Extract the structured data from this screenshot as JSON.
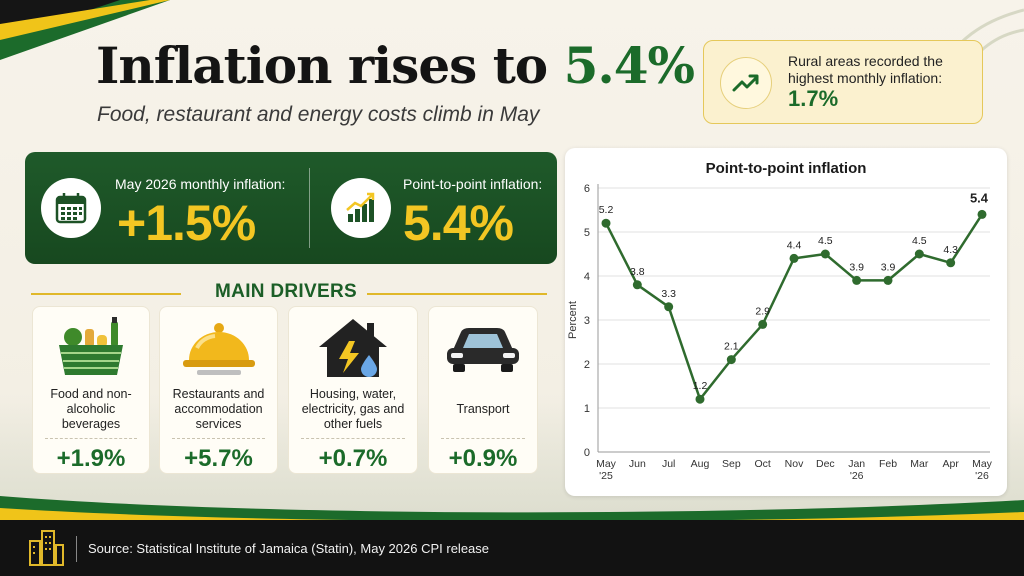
{
  "headline": {
    "title_text": "Inflation rises to",
    "title_value": "5.4%",
    "subtitle": "Food, restaurant and energy costs climb in May"
  },
  "callout": {
    "text_line1": "Rural areas recorded the",
    "text_line2": "highest monthly inflation:",
    "value": "1.7%",
    "icon": "trend-up-icon"
  },
  "summary": {
    "monthly": {
      "label": "May 2026 monthly inflation:",
      "value": "+1.5%",
      "icon": "calendar-icon"
    },
    "p2p": {
      "label": "Point-to-point inflation:",
      "value": "5.4%",
      "icon": "bar-growth-icon"
    }
  },
  "drivers": {
    "heading": "MAIN DRIVERS",
    "items": [
      {
        "label": "Food and non-alcoholic beverages",
        "value": "+1.9%",
        "icon": "grocery-basket-icon"
      },
      {
        "label": "Restaurants and accommodation services",
        "value": "+5.7%",
        "icon": "food-cloche-icon"
      },
      {
        "label": "Housing, water, electricity, gas and other fuels",
        "value": "+0.7%",
        "icon": "house-utilities-icon"
      },
      {
        "label": "Transport",
        "value": "+0.9%",
        "icon": "car-icon"
      }
    ]
  },
  "footer": {
    "source": "Source: Statistical Institute of Jamaica (Statin), May 2026 CPI release",
    "icon": "city-buildings-icon"
  },
  "colors": {
    "green": "#1b6b2a",
    "dark_green": "#1d5226",
    "gold": "#f3c623",
    "line": "#2f6b2e"
  },
  "chart_data": {
    "type": "line",
    "title": "Point-to-point inflation",
    "ylabel": "Percent",
    "xlabel": "",
    "ylim": [
      0,
      6
    ],
    "yticks": [
      0,
      1,
      2,
      3,
      4,
      5,
      6
    ],
    "x": [
      "May '25",
      "Jun",
      "Jul",
      "Aug",
      "Sep",
      "Oct",
      "Nov",
      "Dec",
      "Jan '26",
      "Feb",
      "Mar",
      "Apr",
      "May '26"
    ],
    "x_labels": [
      [
        "May",
        "'25"
      ],
      [
        "Jun"
      ],
      [
        "Jul"
      ],
      [
        "Aug"
      ],
      [
        "Sep"
      ],
      [
        "Oct"
      ],
      [
        "Nov"
      ],
      [
        "Dec"
      ],
      [
        "Jan",
        "'26"
      ],
      [
        "Feb"
      ],
      [
        "Mar"
      ],
      [
        "Apr"
      ],
      [
        "May",
        "'26"
      ]
    ],
    "series": [
      {
        "values": [
          5.2,
          3.8,
          3.3,
          1.2,
          2.1,
          2.9,
          4.4,
          4.5,
          3.9,
          3.9,
          4.5,
          4.3,
          5.4
        ]
      }
    ],
    "value_labels": [
      "5.2",
      "3.8",
      "3.3",
      "1.2",
      "2.1",
      "2.9",
      "4.4",
      "4.5",
      "3.9",
      "3.9",
      "4.5",
      "4.3",
      "5.4"
    ],
    "grid": true
  }
}
